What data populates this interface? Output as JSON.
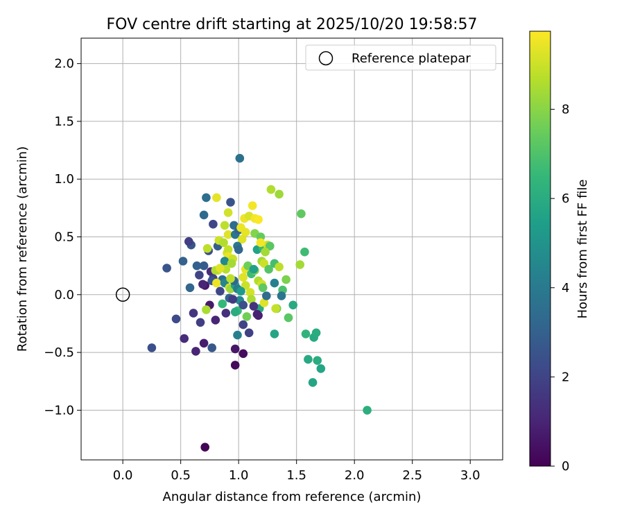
{
  "chart_data": {
    "type": "scatter",
    "title": "FOV centre drift starting at 2025/10/20 19:58:57",
    "xlabel": "Angular distance from reference (arcmin)",
    "ylabel": "Rotation from reference (arcmin)",
    "xlim": [
      -0.36,
      3.28
    ],
    "ylim": [
      -1.43,
      2.22
    ],
    "xticks": [
      0.0,
      0.5,
      1.0,
      1.5,
      2.0,
      2.5,
      3.0
    ],
    "xtick_labels": [
      "0.0",
      "0.5",
      "1.0",
      "1.5",
      "2.0",
      "2.5",
      "3.0"
    ],
    "yticks": [
      -1.0,
      -0.5,
      0.0,
      0.5,
      1.0,
      1.5,
      2.0
    ],
    "ytick_labels": [
      "−1.0",
      "−0.5",
      "0.0",
      "0.5",
      "1.0",
      "1.5",
      "2.0"
    ],
    "grid": true,
    "legend": {
      "location": "top-right",
      "entries": [
        {
          "label": "Reference platepar",
          "marker": "open-circle"
        }
      ]
    },
    "reference_point": {
      "x": 0.0,
      "y": 0.0
    },
    "colorbar": {
      "label": "Hours from first FF file",
      "min": 0,
      "max": 9.75,
      "ticks": [
        0,
        2,
        4,
        6,
        8
      ],
      "tick_labels": [
        "0",
        "2",
        "4",
        "6",
        "8"
      ],
      "colormap": "viridis",
      "colors": [
        "#440154",
        "#482878",
        "#3e4989",
        "#31688e",
        "#26828e",
        "#1f9e89",
        "#35b779",
        "#6ece58",
        "#b5de2b",
        "#fde725"
      ]
    },
    "series": [
      {
        "name": "Hours from first FF file",
        "points": [
          {
            "x": 0.71,
            "y": -1.32,
            "c": 0.1
          },
          {
            "x": 0.97,
            "y": -0.61,
            "c": 0.2
          },
          {
            "x": 1.04,
            "y": -0.51,
            "c": 0.3
          },
          {
            "x": 0.97,
            "y": -0.47,
            "c": 0.6
          },
          {
            "x": 0.7,
            "y": -0.42,
            "c": 0.8
          },
          {
            "x": 0.63,
            "y": -0.49,
            "c": 1.0
          },
          {
            "x": 0.53,
            "y": -0.38,
            "c": 1.2
          },
          {
            "x": 0.25,
            "y": -0.46,
            "c": 2.4
          },
          {
            "x": 0.46,
            "y": -0.21,
            "c": 2.2
          },
          {
            "x": 0.61,
            "y": -0.16,
            "c": 1.5
          },
          {
            "x": 0.67,
            "y": -0.24,
            "c": 1.8
          },
          {
            "x": 0.8,
            "y": -0.22,
            "c": 1.0
          },
          {
            "x": 0.75,
            "y": -0.09,
            "c": 0.7
          },
          {
            "x": 0.89,
            "y": -0.16,
            "c": 1.3
          },
          {
            "x": 0.77,
            "y": -0.46,
            "c": 2.7
          },
          {
            "x": 1.09,
            "y": -0.33,
            "c": 1.9
          },
          {
            "x": 1.04,
            "y": -0.26,
            "c": 2.0
          },
          {
            "x": 1.17,
            "y": -0.18,
            "c": 0.8
          },
          {
            "x": 0.99,
            "y": -0.35,
            "c": 4.2
          },
          {
            "x": 0.72,
            "y": -0.13,
            "c": 8.5
          },
          {
            "x": 0.71,
            "y": 0.08,
            "c": 0.6
          },
          {
            "x": 0.58,
            "y": 0.06,
            "c": 3.2
          },
          {
            "x": 0.52,
            "y": 0.29,
            "c": 3.0
          },
          {
            "x": 0.38,
            "y": 0.23,
            "c": 2.6
          },
          {
            "x": 0.64,
            "y": 0.25,
            "c": 3.0
          },
          {
            "x": 0.7,
            "y": 0.25,
            "c": 2.8
          },
          {
            "x": 0.66,
            "y": 0.17,
            "c": 2.0
          },
          {
            "x": 0.76,
            "y": 0.2,
            "c": 1.2
          },
          {
            "x": 0.59,
            "y": 0.43,
            "c": 2.6
          },
          {
            "x": 0.57,
            "y": 0.46,
            "c": 1.8
          },
          {
            "x": 0.74,
            "y": 0.38,
            "c": 2.3
          },
          {
            "x": 0.73,
            "y": 0.4,
            "c": 8.8
          },
          {
            "x": 0.7,
            "y": 0.69,
            "c": 3.3
          },
          {
            "x": 0.72,
            "y": 0.84,
            "c": 3.5
          },
          {
            "x": 0.78,
            "y": 0.61,
            "c": 2.1
          },
          {
            "x": 0.82,
            "y": 0.42,
            "c": 2.9
          },
          {
            "x": 0.81,
            "y": 0.84,
            "c": 9.4
          },
          {
            "x": 0.93,
            "y": 0.8,
            "c": 2.5
          },
          {
            "x": 0.91,
            "y": 0.71,
            "c": 9.1
          },
          {
            "x": 0.88,
            "y": 0.6,
            "c": 8.8
          },
          {
            "x": 0.96,
            "y": 0.6,
            "c": 3.4
          },
          {
            "x": 1.01,
            "y": 1.18,
            "c": 3.6
          },
          {
            "x": 0.83,
            "y": 0.47,
            "c": 9.0
          },
          {
            "x": 0.87,
            "y": 0.45,
            "c": 8.6
          },
          {
            "x": 0.91,
            "y": 0.52,
            "c": 9.3
          },
          {
            "x": 0.97,
            "y": 0.52,
            "c": 3.8
          },
          {
            "x": 1.0,
            "y": 0.56,
            "c": 3.1
          },
          {
            "x": 1.05,
            "y": 0.66,
            "c": 9.5
          },
          {
            "x": 1.09,
            "y": 0.68,
            "c": 9.2
          },
          {
            "x": 1.12,
            "y": 0.77,
            "c": 9.6
          },
          {
            "x": 1.14,
            "y": 0.66,
            "c": 9.6
          },
          {
            "x": 1.17,
            "y": 0.65,
            "c": 9.7
          },
          {
            "x": 1.02,
            "y": 0.58,
            "c": 9.5
          },
          {
            "x": 1.06,
            "y": 0.54,
            "c": 9.4
          },
          {
            "x": 1.14,
            "y": 0.53,
            "c": 7.9
          },
          {
            "x": 1.19,
            "y": 0.5,
            "c": 7.4
          },
          {
            "x": 1.03,
            "y": 0.48,
            "c": 9.3
          },
          {
            "x": 0.99,
            "y": 0.42,
            "c": 3.9
          },
          {
            "x": 1.0,
            "y": 0.39,
            "c": 3.2
          },
          {
            "x": 1.16,
            "y": 0.39,
            "c": 5.6
          },
          {
            "x": 1.21,
            "y": 0.4,
            "c": 6.5
          },
          {
            "x": 1.25,
            "y": 0.43,
            "c": 9.0
          },
          {
            "x": 1.27,
            "y": 0.42,
            "c": 7.2
          },
          {
            "x": 1.19,
            "y": 0.45,
            "c": 9.6
          },
          {
            "x": 1.23,
            "y": 0.37,
            "c": 8.4
          },
          {
            "x": 0.9,
            "y": 0.36,
            "c": 9.1
          },
          {
            "x": 0.91,
            "y": 0.39,
            "c": 8.9
          },
          {
            "x": 0.91,
            "y": 0.33,
            "c": 9.5
          },
          {
            "x": 0.88,
            "y": 0.29,
            "c": 4.6
          },
          {
            "x": 0.95,
            "y": 0.31,
            "c": 9.0
          },
          {
            "x": 0.94,
            "y": 0.27,
            "c": 8.4
          },
          {
            "x": 0.89,
            "y": 0.22,
            "c": 8.7
          },
          {
            "x": 0.82,
            "y": 0.21,
            "c": 9.0
          },
          {
            "x": 0.8,
            "y": 0.21,
            "c": 8.6
          },
          {
            "x": 0.84,
            "y": 0.23,
            "c": 9.3
          },
          {
            "x": 0.86,
            "y": 0.13,
            "c": 3.5
          },
          {
            "x": 0.78,
            "y": 0.14,
            "c": 1.9
          },
          {
            "x": 0.77,
            "y": 0.12,
            "c": 2.6
          },
          {
            "x": 0.81,
            "y": 0.1,
            "c": 9.5
          },
          {
            "x": 0.88,
            "y": 0.1,
            "c": 4.5
          },
          {
            "x": 0.92,
            "y": 0.06,
            "c": 9.2
          },
          {
            "x": 0.93,
            "y": 0.05,
            "c": 8.3
          },
          {
            "x": 0.97,
            "y": 0.08,
            "c": 5.6
          },
          {
            "x": 0.99,
            "y": 0.05,
            "c": 4.1
          },
          {
            "x": 0.96,
            "y": 0.12,
            "c": 3.3
          },
          {
            "x": 0.93,
            "y": 0.14,
            "c": 8.8
          },
          {
            "x": 1.04,
            "y": 0.15,
            "c": 9.3
          },
          {
            "x": 1.06,
            "y": 0.22,
            "c": 9.4
          },
          {
            "x": 1.08,
            "y": 0.25,
            "c": 7.6
          },
          {
            "x": 1.11,
            "y": 0.18,
            "c": 6.7
          },
          {
            "x": 1.14,
            "y": 0.21,
            "c": 7.8
          },
          {
            "x": 1.13,
            "y": 0.22,
            "c": 5.5
          },
          {
            "x": 1.17,
            "y": 0.12,
            "c": 8.6
          },
          {
            "x": 1.2,
            "y": 0.29,
            "c": 8.4
          },
          {
            "x": 1.2,
            "y": 0.09,
            "c": 9.1
          },
          {
            "x": 1.21,
            "y": 0.06,
            "c": 7.3
          },
          {
            "x": 1.22,
            "y": 0.27,
            "c": 9.0
          },
          {
            "x": 1.26,
            "y": 0.22,
            "c": 7.1
          },
          {
            "x": 1.31,
            "y": 0.27,
            "c": 6.8
          },
          {
            "x": 1.35,
            "y": 0.24,
            "c": 8.8
          },
          {
            "x": 1.31,
            "y": 0.1,
            "c": 4.3
          },
          {
            "x": 1.38,
            "y": 0.04,
            "c": 6.9
          },
          {
            "x": 1.37,
            "y": -0.01,
            "c": 3.8
          },
          {
            "x": 1.41,
            "y": 0.13,
            "c": 7.8
          },
          {
            "x": 1.33,
            "y": -0.12,
            "c": 7.7
          },
          {
            "x": 1.32,
            "y": -0.12,
            "c": 8.9
          },
          {
            "x": 1.18,
            "y": -0.12,
            "c": 5.9
          },
          {
            "x": 1.22,
            "y": -0.07,
            "c": 9.3
          },
          {
            "x": 1.1,
            "y": 0.02,
            "c": 9.1
          },
          {
            "x": 1.11,
            "y": -0.04,
            "c": 8.5
          },
          {
            "x": 1.06,
            "y": 0.08,
            "c": 9.0
          },
          {
            "x": 1.02,
            "y": 0.03,
            "c": 5.3
          },
          {
            "x": 1.01,
            "y": -0.05,
            "c": 4.6
          },
          {
            "x": 0.99,
            "y": -0.14,
            "c": 6.6
          },
          {
            "x": 0.97,
            "y": -0.15,
            "c": 6.0
          },
          {
            "x": 0.86,
            "y": -0.08,
            "c": 6.5
          },
          {
            "x": 1.07,
            "y": -0.19,
            "c": 7.6
          },
          {
            "x": 1.43,
            "y": -0.2,
            "c": 7.2
          },
          {
            "x": 1.47,
            "y": -0.09,
            "c": 5.9
          },
          {
            "x": 1.31,
            "y": -0.34,
            "c": 5.7
          },
          {
            "x": 1.53,
            "y": 0.26,
            "c": 8.4
          },
          {
            "x": 1.54,
            "y": 0.7,
            "c": 7.3
          },
          {
            "x": 1.57,
            "y": 0.37,
            "c": 6.7
          },
          {
            "x": 1.28,
            "y": 0.91,
            "c": 8.6
          },
          {
            "x": 1.35,
            "y": 0.87,
            "c": 8.3
          },
          {
            "x": 1.58,
            "y": -0.34,
            "c": 6.3
          },
          {
            "x": 1.6,
            "y": -0.56,
            "c": 5.9
          },
          {
            "x": 1.65,
            "y": -0.37,
            "c": 5.9
          },
          {
            "x": 1.67,
            "y": -0.33,
            "c": 6.0
          },
          {
            "x": 1.68,
            "y": -0.57,
            "c": 6.0
          },
          {
            "x": 1.71,
            "y": -0.64,
            "c": 5.7
          },
          {
            "x": 1.64,
            "y": -0.76,
            "c": 5.7
          },
          {
            "x": 2.11,
            "y": -1.0,
            "c": 6.1
          },
          {
            "x": 0.69,
            "y": 0.09,
            "c": 1.0
          },
          {
            "x": 0.84,
            "y": 0.03,
            "c": 2.1
          },
          {
            "x": 0.92,
            "y": -0.03,
            "c": 3.1
          },
          {
            "x": 1.13,
            "y": -0.1,
            "c": 1.4
          },
          {
            "x": 1.16,
            "y": -0.17,
            "c": 0.9
          },
          {
            "x": 1.04,
            "y": -0.09,
            "c": 2.4
          },
          {
            "x": 0.95,
            "y": -0.04,
            "c": 1.7
          },
          {
            "x": 1.24,
            "y": -0.01,
            "c": 3.4
          }
        ]
      }
    ]
  }
}
